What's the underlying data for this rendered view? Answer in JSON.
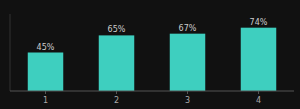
{
  "chart_data": {
    "type": "bar",
    "categories": [
      "1",
      "2",
      "3",
      "4"
    ],
    "values": [
      45,
      65,
      67,
      74
    ],
    "value_labels": [
      "45%",
      "65%",
      "67%",
      "74%"
    ],
    "color": "#3ecfbf",
    "ylim": [
      0,
      90
    ],
    "grid": false,
    "data_labels": true,
    "tick_labels": "x"
  }
}
